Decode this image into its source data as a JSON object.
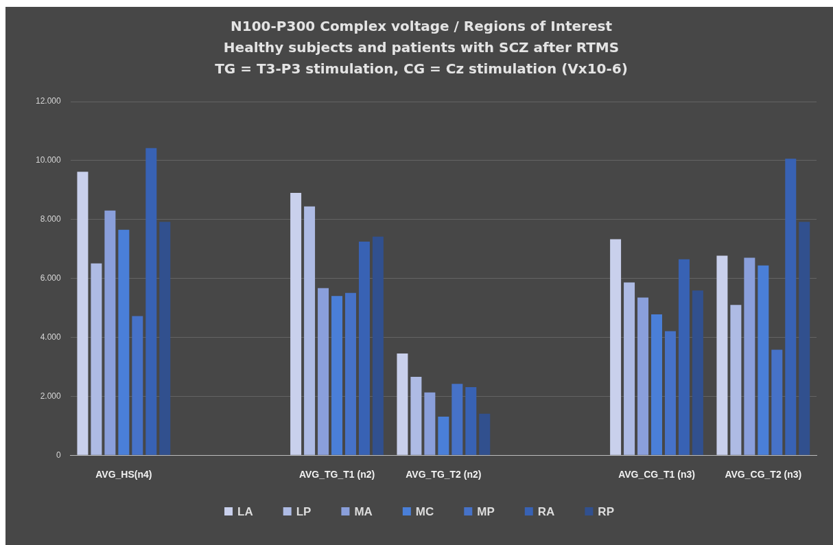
{
  "chart_data": {
    "type": "bar",
    "title": "N100-P300 Complex voltage / Regions of Interest",
    "subtitle": "Healthy subjects and patients with SCZ after RTMS\nTG = T3-P3 stimulation, CG = Cz stimulation (Vx10-6)",
    "categories": [
      "AVG_HS(n4)",
      null,
      "AVG_TG_T1 (n2)",
      "AVG_TG_T2 (n2)",
      null,
      "AVG_CG_T1 (n3)",
      "AVG_CG_T2 (n3)"
    ],
    "series": [
      {
        "name": "LA",
        "color": "#c9d0ec",
        "values": [
          9620,
          null,
          8900,
          3450,
          null,
          7330,
          6770
        ]
      },
      {
        "name": "LP",
        "color": "#aebbe4",
        "values": [
          6510,
          null,
          8440,
          2660,
          null,
          5860,
          5100
        ]
      },
      {
        "name": "MA",
        "color": "#8a9fdb",
        "values": [
          8300,
          null,
          5670,
          2130,
          null,
          5350,
          6700
        ]
      },
      {
        "name": "MC",
        "color": "#4a7fd8",
        "values": [
          7650,
          null,
          5400,
          1310,
          null,
          4780,
          6440
        ]
      },
      {
        "name": "MP",
        "color": "#4672c8",
        "values": [
          4720,
          null,
          5510,
          2420,
          null,
          4210,
          3580
        ]
      },
      {
        "name": "RA",
        "color": "#3862b4",
        "values": [
          10420,
          null,
          7250,
          2310,
          null,
          6650,
          10060
        ]
      },
      {
        "name": "RP",
        "color": "#31508e",
        "values": [
          7920,
          null,
          7420,
          1410,
          null,
          5590,
          7920
        ]
      }
    ],
    "ylim": [
      0,
      12000
    ],
    "yticks": [
      0,
      {
        "value": 2000,
        "label": "2.000"
      },
      {
        "value": 4000,
        "label": "4.000"
      },
      {
        "value": 6000,
        "label": "6.000"
      },
      {
        "value": 8000,
        "label": "8.000"
      },
      {
        "value": 10000,
        "label": "10.000"
      },
      {
        "value": 12000,
        "label": "12.000"
      }
    ],
    "grid": "y",
    "legend": "bottom"
  }
}
